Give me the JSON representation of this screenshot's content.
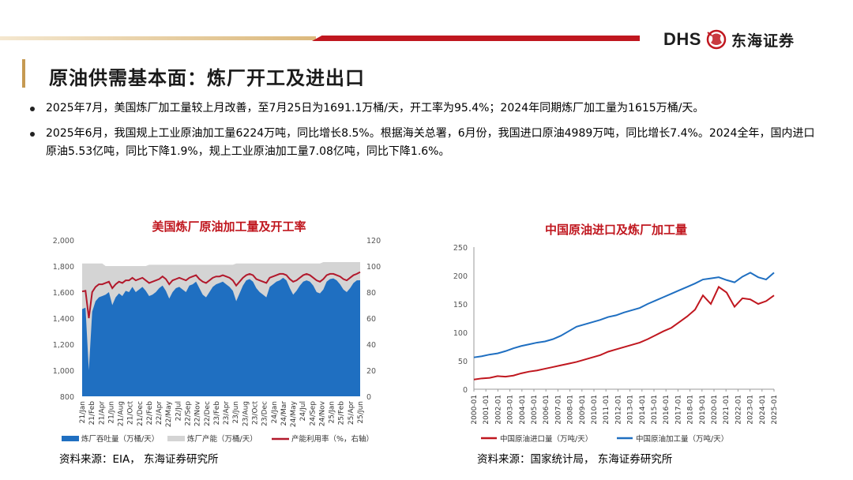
{
  "header": {
    "logo_text": "DHS",
    "logo_cn": "东海证券",
    "logo_icon": "dragon-emblem-icon",
    "colors": {
      "gold": "#dcb97c",
      "red": "#c0171f"
    }
  },
  "page": {
    "title": "原油供需基本面：炼厂开工及进出口",
    "bullets": [
      "2025年7月，美国炼厂加工量较上月改善，至7月25日为1691.1万桶/天，开工率为95.4%；2024年同期炼厂加工量为1615万桶/天。",
      "2025年6月，我国规上工业原油加工量6224万吨，同比增长8.5%。根据海关总署，6月份，我国进口原油4989万吨，同比增长7.4%。2024全年，国内进口原油5.53亿吨，同比下降1.9%，规上工业原油加工量7.08亿吨，同比下降1.6%。"
    ]
  },
  "chart_data": [
    {
      "type": "area",
      "title": "美国炼厂原油加工量及开工率",
      "source": "资料来源：EIA，  东海证券研究所",
      "x_ticks": [
        "21/Jan",
        "21/Feb",
        "21/Apr",
        "21/Jun",
        "21/Aug",
        "21/Oct",
        "21/Dec",
        "22/Feb",
        "22/Apr",
        "22/May",
        "22/Jul",
        "22/Sep",
        "22/Nov",
        "22/Dec",
        "23/Feb",
        "23/Apr",
        "23/Jun",
        "23/Aug",
        "23/Oct",
        "23/Dec",
        "24/Jan",
        "24/Mar",
        "24/May",
        "24/Jul",
        "24/Sep",
        "24/Nov",
        "25/Jan",
        "25/Feb",
        "25/Apr",
        "25/Jun"
      ],
      "y_left": {
        "ticks": [
          "800",
          "1,000",
          "1,200",
          "1,400",
          "1,600",
          "1,800",
          "2,000"
        ],
        "range": [
          800,
          2000
        ]
      },
      "y_right": {
        "ticks": [
          "0",
          "20",
          "40",
          "60",
          "80",
          "100",
          "120"
        ],
        "range": [
          0,
          120
        ]
      },
      "series": [
        {
          "name": "炼厂吞吐量（万桶/天）",
          "color": "#1f6fc1",
          "axis": "left",
          "values": [
            1470,
            1480,
            1000,
            1450,
            1530,
            1560,
            1570,
            1580,
            1600,
            1500,
            1560,
            1590,
            1570,
            1610,
            1600,
            1640,
            1600,
            1620,
            1640,
            1610,
            1570,
            1580,
            1600,
            1630,
            1650,
            1610,
            1550,
            1600,
            1630,
            1640,
            1620,
            1600,
            1650,
            1660,
            1680,
            1630,
            1580,
            1560,
            1600,
            1640,
            1660,
            1670,
            1680,
            1660,
            1640,
            1610,
            1530,
            1590,
            1650,
            1690,
            1700,
            1680,
            1630,
            1600,
            1580,
            1560,
            1640,
            1660,
            1680,
            1690,
            1710,
            1690,
            1630,
            1580,
            1610,
            1650,
            1680,
            1690,
            1680,
            1650,
            1600,
            1590,
            1620,
            1680,
            1700,
            1705,
            1690,
            1660,
            1620,
            1600,
            1630,
            1670,
            1690,
            1691
          ]
        },
        {
          "name": "炼厂产能（万桶/天）",
          "color": "#d4d4d4",
          "axis": "left",
          "values": [
            1820,
            1820,
            1820,
            1820,
            1820,
            1820,
            1820,
            1800,
            1800,
            1800,
            1800,
            1800,
            1800,
            1800,
            1800,
            1800,
            1800,
            1800,
            1800,
            1800,
            1810,
            1810,
            1810,
            1810,
            1810,
            1810,
            1810,
            1810,
            1810,
            1810,
            1810,
            1810,
            1810,
            1810,
            1810,
            1810,
            1810,
            1810,
            1810,
            1810,
            1810,
            1810,
            1810,
            1810,
            1810,
            1810,
            1820,
            1820,
            1820,
            1820,
            1820,
            1820,
            1820,
            1820,
            1820,
            1820,
            1820,
            1820,
            1820,
            1820,
            1820,
            1820,
            1820,
            1820,
            1820,
            1820,
            1820,
            1820,
            1820,
            1820,
            1820,
            1820,
            1830,
            1830,
            1830,
            1830,
            1830,
            1830,
            1830,
            1830,
            1830,
            1830,
            1830,
            1830
          ]
        },
        {
          "name": "产能利用率（%，右轴）",
          "color": "#b2182b",
          "axis": "right",
          "values": [
            80.5,
            81,
            60,
            80,
            84,
            86,
            86,
            87,
            88,
            83,
            86,
            88,
            87,
            89,
            89,
            91,
            89,
            90,
            91,
            89,
            87,
            88,
            89,
            90,
            92,
            90,
            86,
            89,
            90,
            91,
            90,
            89,
            91,
            92,
            93,
            90,
            88,
            87,
            89,
            91,
            92,
            92,
            93,
            92,
            91,
            89,
            85,
            88,
            91,
            93,
            94,
            93,
            90,
            89,
            88,
            87,
            91,
            92,
            93,
            94,
            94,
            93,
            90,
            88,
            89,
            91,
            93,
            94,
            93,
            91,
            89,
            88,
            90,
            93,
            94,
            94,
            93,
            92,
            90,
            89,
            91,
            93,
            94,
            95.4
          ]
        }
      ]
    },
    {
      "type": "line",
      "title": "中国原油进口及炼厂加工量",
      "source": "资料来源：国家统计局，  东海证券研究所",
      "x_ticks": [
        "2000-01",
        "2001-01",
        "2002-01",
        "2003-01",
        "2004-01",
        "2005-01",
        "2006-01",
        "2007-01",
        "2008-01",
        "2009-01",
        "2010-01",
        "2011-01",
        "2012-01",
        "2013-01",
        "2014-01",
        "2015-01",
        "2016-01",
        "2017-01",
        "2018-01",
        "2019-01",
        "2020-01",
        "2021-01",
        "2022-01",
        "2023-01",
        "2024-01",
        "2025-01"
      ],
      "y_left": {
        "ticks": [
          "0",
          "50",
          "100",
          "150",
          "200",
          "250"
        ],
        "range": [
          0,
          250
        ]
      },
      "series": [
        {
          "name": "中国原油进口量（万吨/天）",
          "color": "#c0171f",
          "values": [
            17,
            19,
            20,
            23,
            22,
            24,
            28,
            31,
            33,
            36,
            39,
            42,
            45,
            48,
            52,
            56,
            60,
            66,
            70,
            74,
            78,
            82,
            88,
            95,
            102,
            108,
            118,
            128,
            140,
            165,
            150,
            180,
            170,
            145,
            160,
            158,
            150,
            155,
            165
          ]
        },
        {
          "name": "中国原油加工量（万吨/天）",
          "color": "#1f6fc1",
          "values": [
            56,
            58,
            61,
            63,
            67,
            72,
            76,
            79,
            82,
            84,
            88,
            94,
            102,
            110,
            114,
            118,
            122,
            127,
            130,
            135,
            139,
            143,
            150,
            156,
            162,
            168,
            174,
            180,
            186,
            193,
            195,
            197,
            192,
            188,
            198,
            205,
            197,
            193,
            205
          ]
        }
      ]
    }
  ]
}
